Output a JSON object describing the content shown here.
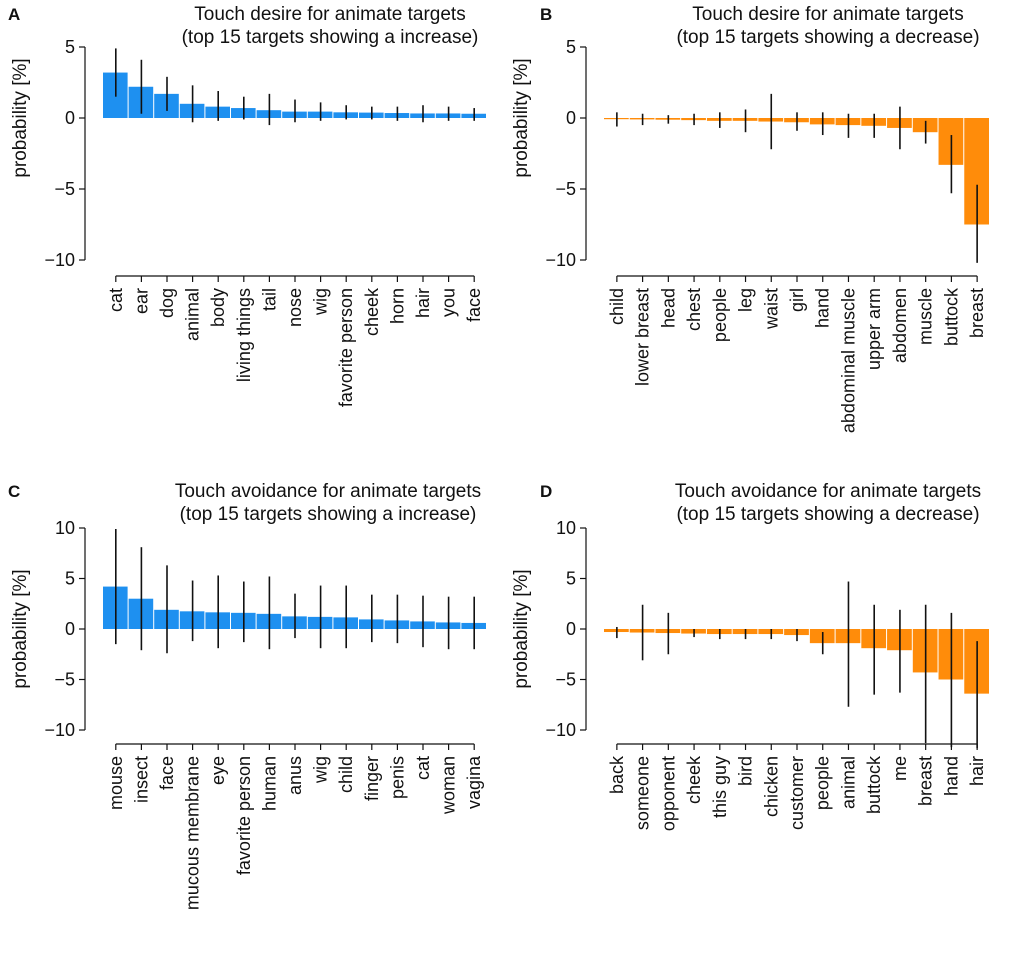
{
  "figure": {
    "ylabel": "probability [%]",
    "increase_color": "#1E90F0",
    "decrease_color": "#FF8C0A"
  },
  "chart_data": [
    {
      "panel": "A",
      "type": "bar",
      "title": "Touch desire for animate targets",
      "subtitle": "(top 15 targets showing a increase)",
      "xlabel": "",
      "ylabel": "probability [%]",
      "ylim": [
        -11,
        5.5
      ],
      "yticks": [
        5,
        0,
        -5,
        -10
      ],
      "ytick_labels": [
        "5",
        "0",
        "−5",
        "−10"
      ],
      "color": "#1E90F0",
      "categories": [
        "cat",
        "ear",
        "dog",
        "animal",
        "body",
        "living things",
        "tail",
        "nose",
        "wig",
        "favorite person",
        "cheek",
        "horn",
        "hair",
        "you",
        "face"
      ],
      "values": [
        3.2,
        2.2,
        1.7,
        1.0,
        0.8,
        0.7,
        0.55,
        0.45,
        0.45,
        0.4,
        0.38,
        0.35,
        0.32,
        0.32,
        0.3
      ],
      "err_low": [
        1.5,
        0.3,
        0.5,
        -0.3,
        -0.2,
        -0.1,
        -0.5,
        -0.3,
        -0.2,
        -0.1,
        -0.1,
        -0.2,
        -0.3,
        -0.2,
        -0.2
      ],
      "err_high": [
        4.9,
        4.1,
        2.9,
        2.3,
        1.9,
        1.5,
        1.7,
        1.3,
        1.1,
        0.9,
        0.8,
        0.8,
        0.9,
        0.8,
        0.7
      ]
    },
    {
      "panel": "B",
      "type": "bar",
      "title": "Touch desire for animate targets",
      "subtitle": "(top 15 targets showing a decrease)",
      "xlabel": "",
      "ylabel": "probability [%]",
      "ylim": [
        -11,
        5.5
      ],
      "yticks": [
        5,
        0,
        -5,
        -10
      ],
      "ytick_labels": [
        "5",
        "0",
        "−5",
        "−10"
      ],
      "color": "#FF8C0A",
      "categories": [
        "child",
        "lower breast",
        "head",
        "chest",
        "people",
        "leg",
        "waist",
        "girl",
        "hand",
        "abdominal muscle",
        "upper arm",
        "abdomen",
        "muscle",
        "buttock",
        "breast"
      ],
      "values": [
        -0.05,
        -0.1,
        -0.12,
        -0.15,
        -0.2,
        -0.2,
        -0.25,
        -0.3,
        -0.45,
        -0.5,
        -0.55,
        -0.7,
        -1.0,
        -3.3,
        -7.5
      ],
      "err_low": [
        -0.6,
        -0.5,
        -0.4,
        -0.5,
        -0.7,
        -1.0,
        -2.2,
        -0.9,
        -1.2,
        -1.4,
        -1.4,
        -2.2,
        -1.8,
        -5.3,
        -10.2
      ],
      "err_high": [
        0.4,
        0.3,
        0.2,
        0.3,
        0.4,
        0.6,
        1.7,
        0.4,
        0.4,
        0.3,
        0.3,
        0.8,
        -0.2,
        -1.2,
        -4.7
      ]
    },
    {
      "panel": "C",
      "type": "bar",
      "title": "Touch avoidance for animate targets",
      "subtitle": "(top 15 targets showing a increase)",
      "xlabel": "",
      "ylabel": "probability [%]",
      "ylim": [
        -12,
        11
      ],
      "yticks": [
        10,
        5,
        0,
        -5,
        -10
      ],
      "ytick_labels": [
        "10",
        "5",
        "0",
        "−5",
        "−10"
      ],
      "color": "#1E90F0",
      "categories": [
        "mouse",
        "insect",
        "face",
        "mucous membrane",
        "eye",
        "favorite person",
        "human",
        "anus",
        "wig",
        "child",
        "finger",
        "penis",
        "cat",
        "woman",
        "vagina"
      ],
      "values": [
        4.2,
        3.0,
        1.9,
        1.75,
        1.65,
        1.6,
        1.5,
        1.25,
        1.2,
        1.15,
        0.95,
        0.85,
        0.75,
        0.65,
        0.6
      ],
      "err_low": [
        -1.5,
        -2.1,
        -2.4,
        -1.2,
        -1.9,
        -1.3,
        -2.0,
        -0.9,
        -1.9,
        -1.9,
        -1.3,
        -1.4,
        -1.8,
        -2.0,
        -2.0
      ],
      "err_high": [
        9.9,
        8.1,
        6.3,
        4.8,
        5.3,
        4.7,
        5.2,
        3.5,
        4.3,
        4.3,
        3.4,
        3.4,
        3.3,
        3.2,
        3.2
      ]
    },
    {
      "panel": "D",
      "type": "bar",
      "title": "Touch avoidance for animate targets",
      "subtitle": "(top 15 targets showing a decrease)",
      "xlabel": "",
      "ylabel": "probability [%]",
      "ylim": [
        -12,
        11
      ],
      "yticks": [
        10,
        5,
        0,
        -5,
        -10
      ],
      "ytick_labels": [
        "10",
        "5",
        "0",
        "−5",
        "−10"
      ],
      "color": "#FF8C0A",
      "categories": [
        "back",
        "someone",
        "opponent",
        "cheek",
        "this guy",
        "bird",
        "chicken",
        "customer",
        "people",
        "animal",
        "buttock",
        "me",
        "breast",
        "hand",
        "hair"
      ],
      "values": [
        -0.3,
        -0.35,
        -0.4,
        -0.45,
        -0.5,
        -0.5,
        -0.5,
        -0.6,
        -1.4,
        -1.4,
        -1.9,
        -2.1,
        -4.3,
        -5.0,
        -6.4
      ],
      "err_low": [
        -0.9,
        -3.1,
        -2.5,
        -0.8,
        -1.0,
        -1.0,
        -1.0,
        -1.2,
        -2.5,
        -7.7,
        -6.5,
        -6.3,
        -11.3,
        -11.7,
        -11.8
      ],
      "err_high": [
        0.2,
        2.4,
        1.6,
        0.0,
        0.0,
        0.0,
        0.0,
        0.0,
        -0.3,
        4.7,
        2.4,
        1.9,
        2.4,
        1.6,
        -1.2
      ]
    }
  ]
}
